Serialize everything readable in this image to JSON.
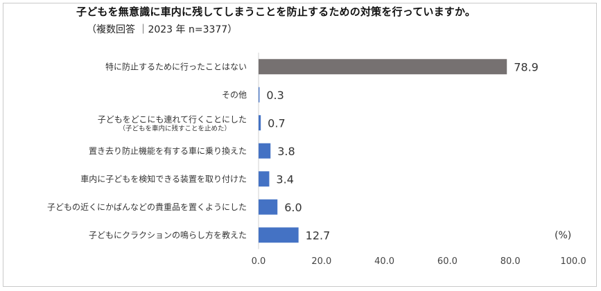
{
  "title": "子どもを無意識に車内に残してしまうことを防止するための対策を行っていますか。",
  "subtitle": "（複数回答 ｜2023 年 n=3377）",
  "unit_label": "(%)",
  "chart_data": {
    "type": "bar",
    "orientation": "horizontal",
    "title": "子どもを無意識に車内に残してしまうことを防止するための対策を行っていますか。",
    "subtitle": "（複数回答 ｜2023 年 n=3377）",
    "xlabel": "(%)",
    "ylabel": "",
    "xlim": [
      0,
      100
    ],
    "xticks": [
      "0.0",
      "20.0",
      "40.0",
      "60.0",
      "80.0",
      "100.0"
    ],
    "bars": [
      {
        "label": "特に防止するために行ったことはない",
        "sublabel": "",
        "value": 78.9,
        "display": "78.9",
        "color": "#767171"
      },
      {
        "label": "その他",
        "sublabel": "",
        "value": 0.3,
        "display": "0.3",
        "color": "#4472C4"
      },
      {
        "label": "子どもをどこにも連れて行くことにした",
        "sublabel": "（子どもを車内に残すことを止めた）",
        "value": 0.7,
        "display": "0.7",
        "color": "#4472C4"
      },
      {
        "label": "置き去り防止機能を有する車に乗り換えた",
        "sublabel": "",
        "value": 3.8,
        "display": "3.8",
        "color": "#4472C4"
      },
      {
        "label": "車内に子どもを検知できる装置を取り付けた",
        "sublabel": "",
        "value": 3.4,
        "display": "3.4",
        "color": "#4472C4"
      },
      {
        "label": "子どもの近くにかばんなどの貴重品を置くようにした",
        "sublabel": "",
        "value": 6.0,
        "display": "6.0",
        "color": "#4472C4"
      },
      {
        "label": "子どもにクラクションの鳴らし方を教えた",
        "sublabel": "",
        "value": 12.7,
        "display": "12.7",
        "color": "#4472C4"
      }
    ]
  }
}
